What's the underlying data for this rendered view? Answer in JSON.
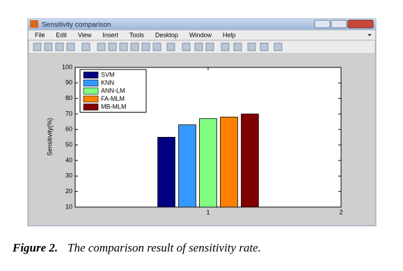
{
  "window": {
    "title": "Sensitivity comparison",
    "menu": [
      "File",
      "Edit",
      "View",
      "Insert",
      "Tools",
      "Desktop",
      "Window",
      "Help"
    ]
  },
  "chart_data": {
    "type": "bar",
    "y_label": "Sensitivity(%)",
    "x": [
      1
    ],
    "series": [
      {
        "name": "SVM",
        "color": "#000080",
        "values": [
          55
        ]
      },
      {
        "name": "KNN",
        "color": "#3399ff",
        "values": [
          63
        ]
      },
      {
        "name": "ANN-LM",
        "color": "#80ff80",
        "values": [
          67
        ]
      },
      {
        "name": "FA-MLM",
        "color": "#ff8000",
        "values": [
          68
        ]
      },
      {
        "name": "MB-MLM",
        "color": "#800000",
        "values": [
          70
        ]
      }
    ],
    "xlim": [
      0,
      2
    ],
    "xticks": [
      1,
      2
    ],
    "ylim": [
      10,
      100
    ],
    "yticks": [
      10,
      20,
      30,
      40,
      50,
      60,
      70,
      80,
      90,
      100
    ],
    "legend": "upper left"
  },
  "caption": {
    "label": "Figure 2.",
    "text": "The comparison result of sensitivity rate."
  }
}
